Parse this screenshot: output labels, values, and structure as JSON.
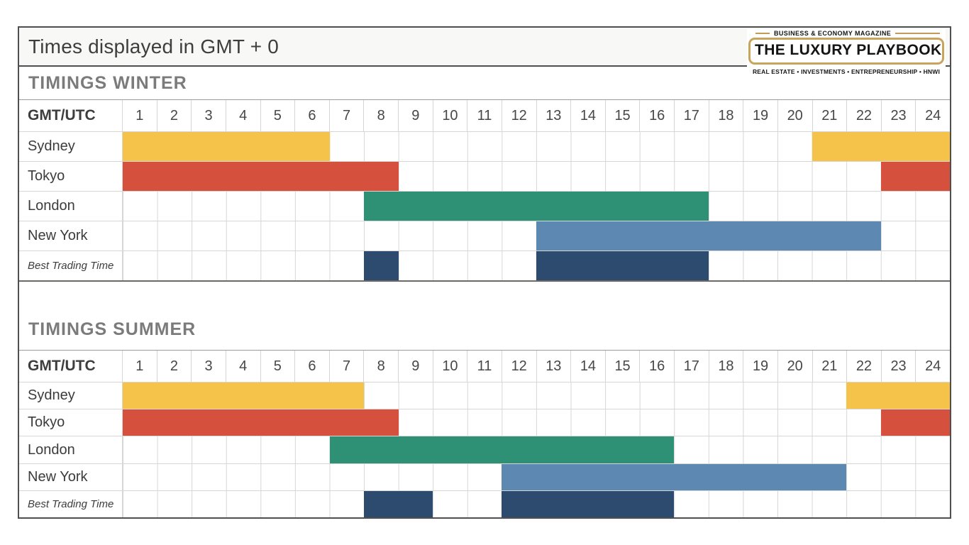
{
  "page": {
    "title": "Times displayed in GMT + 0"
  },
  "logo": {
    "eyebrow": "BUSINESS & ECONOMY MAGAZINE",
    "name": "THE LUXURY PLAYBOOK",
    "tagline": "REAL ESTATE • INVESTMENTS • ENTREPRENEURSHIP • HNWI",
    "accent_color": "#C9A45D"
  },
  "hours": [
    1,
    2,
    3,
    4,
    5,
    6,
    7,
    8,
    9,
    10,
    11,
    12,
    13,
    14,
    15,
    16,
    17,
    18,
    19,
    20,
    21,
    22,
    23,
    24
  ],
  "colors": {
    "sydney": "#F5C24A",
    "tokyo": "#D5503D",
    "london": "#2E9074",
    "new_york": "#5C88B2",
    "best_trading": "#2C4B6F",
    "grid_line": "#D6D6D6",
    "heading_gray": "#7B7B7B"
  },
  "chart_data": [
    {
      "type": "table",
      "subtype": "gantt-sessions",
      "title": "TIMINGS WINTER",
      "corner_label": "GMT/UTC",
      "x_unit": "hour (GMT/UTC)",
      "x_range": [
        1,
        24
      ],
      "grid": true,
      "rows": [
        {
          "label": "Sydney",
          "color": "#F5C24A",
          "italic": false,
          "sessions": [
            [
              1,
              6
            ],
            [
              21,
              24
            ]
          ]
        },
        {
          "label": "Tokyo",
          "color": "#D5503D",
          "italic": false,
          "sessions": [
            [
              1,
              8
            ],
            [
              23,
              24
            ]
          ]
        },
        {
          "label": "London",
          "color": "#2E9074",
          "italic": false,
          "sessions": [
            [
              8,
              17
            ]
          ]
        },
        {
          "label": "New York",
          "color": "#5C88B2",
          "italic": false,
          "sessions": [
            [
              13,
              22
            ]
          ]
        },
        {
          "label": "Best Trading Time",
          "color": "#2C4B6F",
          "italic": true,
          "sessions": [
            [
              8,
              8
            ],
            [
              13,
              17
            ]
          ]
        }
      ]
    },
    {
      "type": "table",
      "subtype": "gantt-sessions",
      "title": "TIMINGS SUMMER",
      "corner_label": "GMT/UTC",
      "x_unit": "hour (GMT/UTC)",
      "x_range": [
        1,
        24
      ],
      "grid": true,
      "rows": [
        {
          "label": "Sydney",
          "color": "#F5C24A",
          "italic": false,
          "sessions": [
            [
              1,
              7
            ],
            [
              22,
              24
            ]
          ]
        },
        {
          "label": "Tokyo",
          "color": "#D5503D",
          "italic": false,
          "sessions": [
            [
              1,
              8
            ],
            [
              23,
              24
            ]
          ]
        },
        {
          "label": "London",
          "color": "#2E9074",
          "italic": false,
          "sessions": [
            [
              7,
              16
            ]
          ]
        },
        {
          "label": "New York",
          "color": "#5C88B2",
          "italic": false,
          "sessions": [
            [
              12,
              21
            ]
          ]
        },
        {
          "label": "Best Trading Time",
          "color": "#2C4B6F",
          "italic": true,
          "sessions": [
            [
              8,
              9
            ],
            [
              12,
              16
            ]
          ]
        }
      ]
    }
  ]
}
